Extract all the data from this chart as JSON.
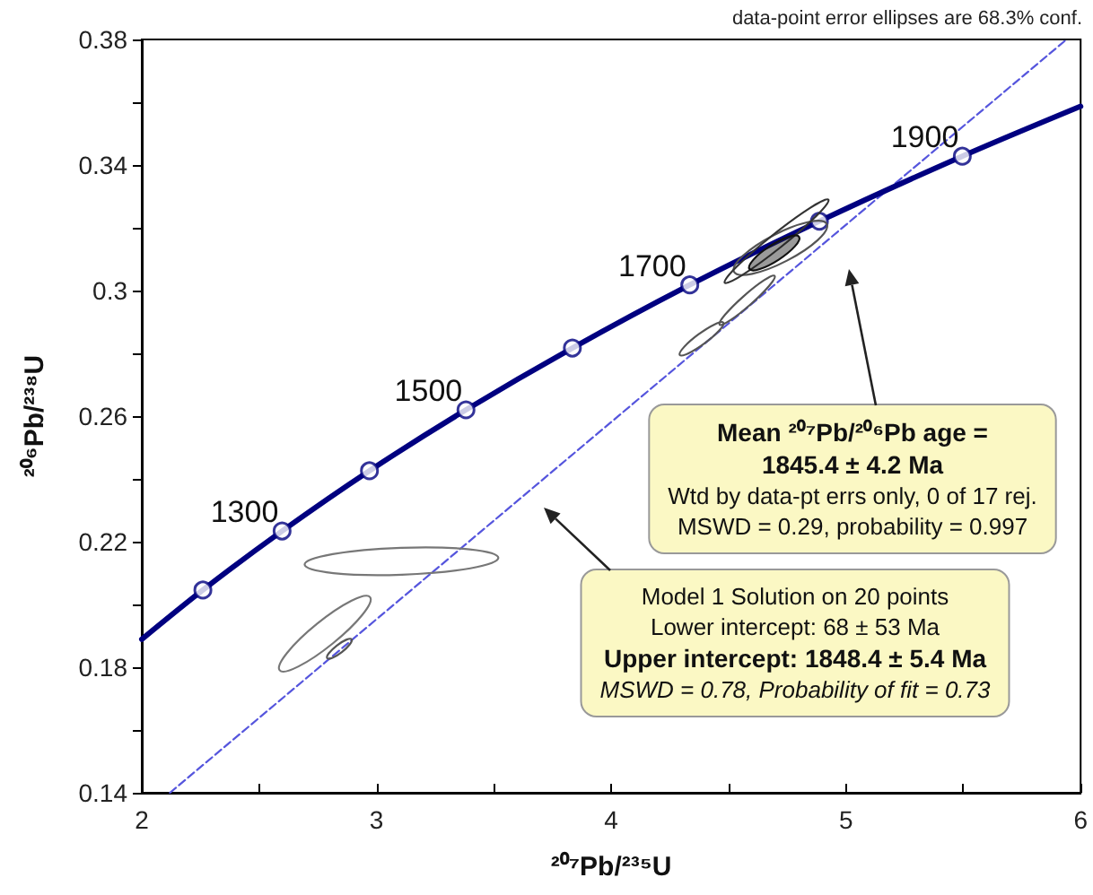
{
  "chart_data": {
    "type": "line",
    "xlabel": "²⁰⁷Pb/²³⁵U",
    "ylabel": "²⁰⁶Pb/²³⁸U",
    "xlim": [
      2,
      6
    ],
    "ylim": [
      0.14,
      0.38
    ],
    "xticks": [
      2,
      {
        "value": 2.5,
        "label": null
      },
      3,
      {
        "value": 3.5,
        "label": null
      },
      4,
      {
        "value": 4.5,
        "label": null
      },
      5,
      {
        "value": 5.5,
        "label": null
      },
      6
    ],
    "yticks": [
      0.14,
      {
        "value": 0.16,
        "label": null
      },
      0.18,
      {
        "value": 0.2,
        "label": null
      },
      0.22,
      {
        "value": 0.24,
        "label": null
      },
      0.26,
      {
        "value": 0.28,
        "label": null
      },
      0.3,
      {
        "value": 0.32,
        "label": null
      },
      0.34,
      {
        "value": 0.36,
        "label": null
      },
      0.38
    ],
    "grid": false,
    "series": [
      {
        "color": "#5555dd",
        "marker": "none",
        "line_style": "dashed",
        "x": [
          2.12,
          5.94
        ],
        "values": [
          0.14,
          0.38
        ]
      },
      {
        "color": "#000080",
        "marker": "none",
        "line_style": "solid",
        "x": [
          2,
          2.2603,
          2.5978,
          2.97,
          3.3812,
          3.8346,
          4.3348,
          4.887,
          5.4959,
          6
        ],
        "values": [
          0.1889,
          0.2046,
          0.2234,
          0.2426,
          0.262,
          0.2817,
          0.3018,
          0.3221,
          0.3428,
          0.3587
        ]
      },
      {
        "type": "scatter",
        "color": "#000080",
        "marker": "circle",
        "x": [
          2.2603,
          2.5978,
          2.97,
          3.3812,
          3.8346,
          4.3348,
          4.887,
          5.4959
        ],
        "values": [
          0.2046,
          0.2234,
          0.2426,
          0.262,
          0.2817,
          0.3018,
          0.3221,
          0.3428
        ]
      }
    ],
    "annotations": [
      "data-point error ellipses are 68.3% conf.",
      {
        "text": "1300",
        "x": 2.5978,
        "y": 0.2234
      },
      {
        "text": "1500",
        "x": 3.3812,
        "y": 0.262
      },
      {
        "text": "1700",
        "x": 4.3348,
        "y": 0.3018
      },
      {
        "text": "1900",
        "x": 5.4959,
        "y": 0.3428
      },
      "Mean ²⁰⁷Pb/²⁰⁶Pb age =\n1845.4 ± 4.2 Ma\nWtd by data-pt errs only, 0 of 17 rej.\nMSWD = 0.29, probability = 0.997",
      "Model 1 Solution on 20 points\nLower intercept: 68 ± 53 Ma\nUpper intercept: 1848.4 ± 5.4 Ma\nMSWD = 0.78, Probability of fit = 0.73"
    ]
  }
}
